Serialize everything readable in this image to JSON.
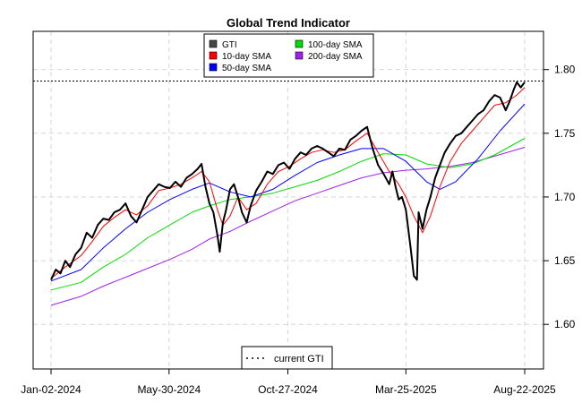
{
  "chart_data": {
    "type": "line",
    "title": "Global Trend Indicator",
    "xlabel": "",
    "ylabel": "",
    "x_ticks": [
      "Jan-02-2024",
      "May-30-2024",
      "Oct-27-2024",
      "Mar-25-2025",
      "Aug-22-2025"
    ],
    "y_ticks": [
      "1.60",
      "1.65",
      "1.70",
      "1.75",
      "1.80"
    ],
    "ylim": [
      1.565,
      1.83
    ],
    "grid": true,
    "legend_placement": "top-center",
    "series": [
      {
        "name": "GTI",
        "color": "#000000",
        "points": [
          [
            "2024-01-02",
            1.635
          ],
          [
            "2024-01-08",
            1.643
          ],
          [
            "2024-01-14",
            1.64
          ],
          [
            "2024-01-20",
            1.65
          ],
          [
            "2024-01-26",
            1.645
          ],
          [
            "2024-02-02",
            1.655
          ],
          [
            "2024-02-09",
            1.66
          ],
          [
            "2024-02-16",
            1.672
          ],
          [
            "2024-02-23",
            1.668
          ],
          [
            "2024-03-01",
            1.678
          ],
          [
            "2024-03-08",
            1.683
          ],
          [
            "2024-03-15",
            1.682
          ],
          [
            "2024-03-22",
            1.688
          ],
          [
            "2024-03-29",
            1.69
          ],
          [
            "2024-04-05",
            1.695
          ],
          [
            "2024-04-12",
            1.685
          ],
          [
            "2024-04-19",
            1.68
          ],
          [
            "2024-04-26",
            1.69
          ],
          [
            "2024-05-03",
            1.7
          ],
          [
            "2024-05-10",
            1.705
          ],
          [
            "2024-05-17",
            1.71
          ],
          [
            "2024-05-24",
            1.708
          ],
          [
            "2024-05-31",
            1.707
          ],
          [
            "2024-06-07",
            1.712
          ],
          [
            "2024-06-14",
            1.708
          ],
          [
            "2024-06-21",
            1.715
          ],
          [
            "2024-06-28",
            1.718
          ],
          [
            "2024-07-05",
            1.722
          ],
          [
            "2024-07-10",
            1.726
          ],
          [
            "2024-07-15",
            1.708
          ],
          [
            "2024-07-20",
            1.695
          ],
          [
            "2024-07-25",
            1.688
          ],
          [
            "2024-07-30",
            1.67
          ],
          [
            "2024-08-02",
            1.657
          ],
          [
            "2024-08-06",
            1.68
          ],
          [
            "2024-08-10",
            1.69
          ],
          [
            "2024-08-15",
            1.706
          ],
          [
            "2024-08-20",
            1.71
          ],
          [
            "2024-08-25",
            1.7
          ],
          [
            "2024-08-30",
            1.688
          ],
          [
            "2024-09-05",
            1.68
          ],
          [
            "2024-09-10",
            1.693
          ],
          [
            "2024-09-17",
            1.705
          ],
          [
            "2024-09-24",
            1.712
          ],
          [
            "2024-10-01",
            1.72
          ],
          [
            "2024-10-08",
            1.718
          ],
          [
            "2024-10-15",
            1.725
          ],
          [
            "2024-10-22",
            1.727
          ],
          [
            "2024-10-29",
            1.722
          ],
          [
            "2024-11-05",
            1.73
          ],
          [
            "2024-11-12",
            1.735
          ],
          [
            "2024-11-19",
            1.733
          ],
          [
            "2024-11-26",
            1.738
          ],
          [
            "2024-12-03",
            1.74
          ],
          [
            "2024-12-10",
            1.738
          ],
          [
            "2024-12-17",
            1.735
          ],
          [
            "2024-12-24",
            1.732
          ],
          [
            "2024-12-31",
            1.738
          ],
          [
            "2025-01-07",
            1.737
          ],
          [
            "2025-01-14",
            1.745
          ],
          [
            "2025-01-21",
            1.748
          ],
          [
            "2025-01-28",
            1.752
          ],
          [
            "2025-02-04",
            1.755
          ],
          [
            "2025-02-11",
            1.738
          ],
          [
            "2025-02-18",
            1.725
          ],
          [
            "2025-02-25",
            1.718
          ],
          [
            "2025-03-04",
            1.71
          ],
          [
            "2025-03-08",
            1.72
          ],
          [
            "2025-03-12",
            1.708
          ],
          [
            "2025-03-16",
            1.698
          ],
          [
            "2025-03-20",
            1.7
          ],
          [
            "2025-03-25",
            1.69
          ],
          [
            "2025-03-31",
            1.66
          ],
          [
            "2025-04-04",
            1.638
          ],
          [
            "2025-04-08",
            1.635
          ],
          [
            "2025-04-10",
            1.688
          ],
          [
            "2025-04-15",
            1.675
          ],
          [
            "2025-04-20",
            1.69
          ],
          [
            "2025-04-25",
            1.7
          ],
          [
            "2025-05-01",
            1.715
          ],
          [
            "2025-05-07",
            1.725
          ],
          [
            "2025-05-13",
            1.735
          ],
          [
            "2025-05-20",
            1.742
          ],
          [
            "2025-05-27",
            1.748
          ],
          [
            "2025-06-03",
            1.75
          ],
          [
            "2025-06-10",
            1.755
          ],
          [
            "2025-06-17",
            1.76
          ],
          [
            "2025-06-24",
            1.765
          ],
          [
            "2025-07-01",
            1.768
          ],
          [
            "2025-07-08",
            1.775
          ],
          [
            "2025-07-15",
            1.78
          ],
          [
            "2025-07-22",
            1.778
          ],
          [
            "2025-07-29",
            1.768
          ],
          [
            "2025-08-03",
            1.775
          ],
          [
            "2025-08-08",
            1.784
          ],
          [
            "2025-08-12",
            1.79
          ],
          [
            "2025-08-17",
            1.786
          ],
          [
            "2025-08-22",
            1.79
          ]
        ]
      },
      {
        "name": "10-day SMA",
        "color": "#ff0000",
        "points": [
          [
            "2024-01-02",
            1.636
          ],
          [
            "2024-01-20",
            1.645
          ],
          [
            "2024-02-09",
            1.654
          ],
          [
            "2024-02-23",
            1.665
          ],
          [
            "2024-03-08",
            1.677
          ],
          [
            "2024-03-22",
            1.684
          ],
          [
            "2024-04-05",
            1.69
          ],
          [
            "2024-04-19",
            1.686
          ],
          [
            "2024-05-03",
            1.693
          ],
          [
            "2024-05-17",
            1.705
          ],
          [
            "2024-05-31",
            1.707
          ],
          [
            "2024-06-14",
            1.71
          ],
          [
            "2024-06-28",
            1.715
          ],
          [
            "2024-07-10",
            1.72
          ],
          [
            "2024-07-20",
            1.712
          ],
          [
            "2024-07-30",
            1.69
          ],
          [
            "2024-08-06",
            1.678
          ],
          [
            "2024-08-15",
            1.685
          ],
          [
            "2024-08-25",
            1.7
          ],
          [
            "2024-09-05",
            1.69
          ],
          [
            "2024-09-17",
            1.695
          ],
          [
            "2024-10-01",
            1.71
          ],
          [
            "2024-10-15",
            1.72
          ],
          [
            "2024-10-29",
            1.724
          ],
          [
            "2024-11-12",
            1.73
          ],
          [
            "2024-11-26",
            1.735
          ],
          [
            "2024-12-10",
            1.737
          ],
          [
            "2024-12-24",
            1.735
          ],
          [
            "2025-01-07",
            1.737
          ],
          [
            "2025-01-21",
            1.744
          ],
          [
            "2025-02-04",
            1.75
          ],
          [
            "2025-02-18",
            1.735
          ],
          [
            "2025-03-04",
            1.72
          ],
          [
            "2025-03-16",
            1.71
          ],
          [
            "2025-03-25",
            1.7
          ],
          [
            "2025-04-04",
            1.685
          ],
          [
            "2025-04-15",
            1.672
          ],
          [
            "2025-04-25",
            1.685
          ],
          [
            "2025-05-07",
            1.708
          ],
          [
            "2025-05-20",
            1.728
          ],
          [
            "2025-06-03",
            1.742
          ],
          [
            "2025-06-17",
            1.752
          ],
          [
            "2025-07-01",
            1.762
          ],
          [
            "2025-07-15",
            1.772
          ],
          [
            "2025-07-29",
            1.774
          ],
          [
            "2025-08-12",
            1.78
          ],
          [
            "2025-08-22",
            1.786
          ]
        ]
      },
      {
        "name": "50-day SMA",
        "color": "#0000ff",
        "points": [
          [
            "2024-01-02",
            1.634
          ],
          [
            "2024-02-09",
            1.643
          ],
          [
            "2024-03-08",
            1.66
          ],
          [
            "2024-04-05",
            1.675
          ],
          [
            "2024-05-03",
            1.688
          ],
          [
            "2024-05-31",
            1.698
          ],
          [
            "2024-06-28",
            1.706
          ],
          [
            "2024-07-20",
            1.711
          ],
          [
            "2024-08-15",
            1.704
          ],
          [
            "2024-09-10",
            1.7
          ],
          [
            "2024-10-08",
            1.706
          ],
          [
            "2024-11-05",
            1.717
          ],
          [
            "2024-12-03",
            1.727
          ],
          [
            "2024-12-31",
            1.733
          ],
          [
            "2025-01-28",
            1.738
          ],
          [
            "2025-02-25",
            1.738
          ],
          [
            "2025-03-25",
            1.728
          ],
          [
            "2025-04-20",
            1.712
          ],
          [
            "2025-05-07",
            1.706
          ],
          [
            "2025-05-27",
            1.712
          ],
          [
            "2025-06-24",
            1.73
          ],
          [
            "2025-07-22",
            1.752
          ],
          [
            "2025-08-22",
            1.773
          ]
        ]
      },
      {
        "name": "100-day SMA",
        "color": "#00dd00",
        "points": [
          [
            "2024-01-02",
            1.627
          ],
          [
            "2024-02-09",
            1.633
          ],
          [
            "2024-03-08",
            1.645
          ],
          [
            "2024-04-05",
            1.655
          ],
          [
            "2024-05-03",
            1.668
          ],
          [
            "2024-05-31",
            1.678
          ],
          [
            "2024-06-28",
            1.688
          ],
          [
            "2024-07-20",
            1.693
          ],
          [
            "2024-08-15",
            1.698
          ],
          [
            "2024-09-10",
            1.7
          ],
          [
            "2024-10-08",
            1.703
          ],
          [
            "2024-11-05",
            1.708
          ],
          [
            "2024-12-03",
            1.713
          ],
          [
            "2024-12-31",
            1.72
          ],
          [
            "2025-01-28",
            1.728
          ],
          [
            "2025-02-25",
            1.734
          ],
          [
            "2025-03-25",
            1.733
          ],
          [
            "2025-04-20",
            1.726
          ],
          [
            "2025-05-20",
            1.723
          ],
          [
            "2025-06-17",
            1.726
          ],
          [
            "2025-07-15",
            1.733
          ],
          [
            "2025-08-22",
            1.746
          ]
        ]
      },
      {
        "name": "200-day SMA",
        "color": "#a020f0",
        "points": [
          [
            "2024-01-02",
            1.615
          ],
          [
            "2024-02-09",
            1.622
          ],
          [
            "2024-03-08",
            1.63
          ],
          [
            "2024-04-05",
            1.637
          ],
          [
            "2024-05-03",
            1.644
          ],
          [
            "2024-05-31",
            1.651
          ],
          [
            "2024-06-28",
            1.659
          ],
          [
            "2024-07-20",
            1.667
          ],
          [
            "2024-08-15",
            1.673
          ],
          [
            "2024-09-10",
            1.681
          ],
          [
            "2024-10-08",
            1.689
          ],
          [
            "2024-11-05",
            1.697
          ],
          [
            "2024-12-03",
            1.703
          ],
          [
            "2024-12-31",
            1.709
          ],
          [
            "2025-01-28",
            1.715
          ],
          [
            "2025-02-25",
            1.719
          ],
          [
            "2025-03-25",
            1.721
          ],
          [
            "2025-04-20",
            1.722
          ],
          [
            "2025-05-20",
            1.724
          ],
          [
            "2025-06-17",
            1.727
          ],
          [
            "2025-07-15",
            1.732
          ],
          [
            "2025-08-22",
            1.739
          ]
        ]
      }
    ],
    "current_line": {
      "label": "current GTI",
      "value": 1.791,
      "style": "dotted",
      "color": "#000000"
    }
  }
}
